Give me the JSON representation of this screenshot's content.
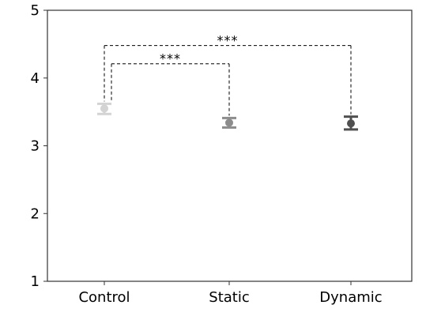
{
  "chart_data": {
    "type": "scatter",
    "title": "",
    "xlabel": "",
    "ylabel": "",
    "categories": [
      "Control",
      "Static",
      "Dynamic"
    ],
    "ylim": [
      1,
      5
    ],
    "yticks": [
      "1",
      "2",
      "3",
      "4",
      "5"
    ],
    "grid": false,
    "points": [
      {
        "category": "Control",
        "mean": 3.55,
        "lower": 3.47,
        "upper": 3.62,
        "color": "#d3d3d3"
      },
      {
        "category": "Static",
        "mean": 3.34,
        "lower": 3.27,
        "upper": 3.41,
        "color": "#8c8c8c"
      },
      {
        "category": "Dynamic",
        "mean": 3.33,
        "lower": 3.24,
        "upper": 3.43,
        "color": "#505050"
      }
    ],
    "annotations": [
      {
        "from": "Control",
        "to": "Dynamic",
        "bar_y": 4.48,
        "label": "***"
      },
      {
        "from": "Control",
        "to": "Static",
        "bar_y": 4.21,
        "label": "***"
      }
    ]
  }
}
